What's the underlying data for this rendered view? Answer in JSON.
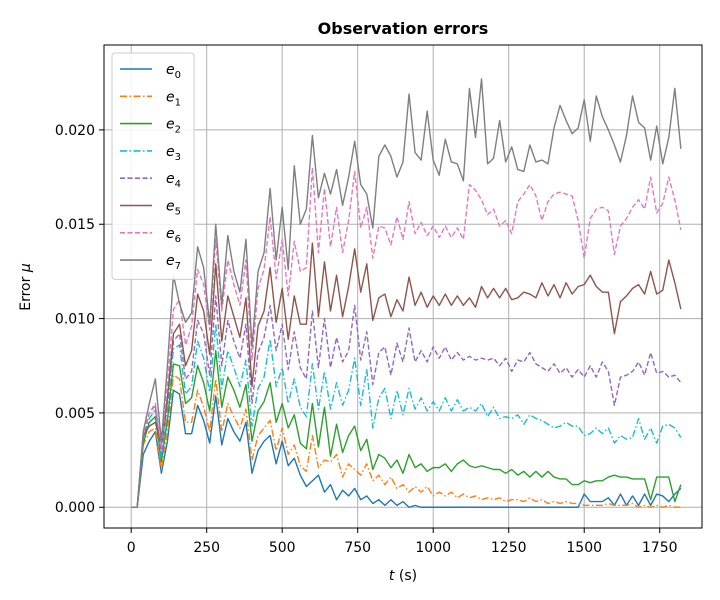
{
  "chart_data": {
    "type": "line",
    "title": "Observation errors",
    "xlabel": "t (s)",
    "ylabel": "Error μ",
    "xlim": [
      -90,
      1890
    ],
    "ylim": [
      -0.0011,
      0.0245
    ],
    "xticks": [
      0,
      250,
      500,
      750,
      1000,
      1250,
      1500,
      1750
    ],
    "yticks": [
      0.0,
      0.005,
      0.01,
      0.015,
      0.02
    ],
    "ytick_labels": [
      "0.000",
      "0.005",
      "0.010",
      "0.015",
      "0.020"
    ],
    "grid": true,
    "legend_position": "top-left",
    "x_step": 20,
    "x_start": 0,
    "series": [
      {
        "name": "e0",
        "label_main": "e",
        "label_sub": "0",
        "color": "#1f77b4",
        "style": "solid",
        "values": [
          0,
          0,
          0.0028,
          0.0035,
          0.004,
          0.0018,
          0.0035,
          0.0062,
          0.006,
          0.0039,
          0.0039,
          0.0054,
          0.0046,
          0.0034,
          0.0059,
          0.0033,
          0.0047,
          0.004,
          0.0035,
          0.0045,
          0.0018,
          0.003,
          0.0035,
          0.0038,
          0.0023,
          0.0035,
          0.0022,
          0.0026,
          0.0017,
          0.0011,
          0.0014,
          0.0017,
          0.0008,
          0.0012,
          0.0004,
          0.0009,
          0.0006,
          0.001,
          0.0004,
          0.0006,
          0.0002,
          0.0004,
          0.0001,
          0.0004,
          0.0001,
          0.0003,
          0,
          0.0001,
          0,
          0,
          0,
          0,
          0,
          0,
          0,
          0,
          0,
          0,
          0,
          0,
          0,
          0,
          0,
          0,
          0,
          0,
          0,
          0,
          0,
          0,
          0,
          0,
          0,
          0,
          0,
          0.0007,
          0.0003,
          0.0003,
          0.0003,
          0.0005,
          0.0001,
          0.0007,
          0.0001,
          0.0006,
          0.0001,
          0.0007,
          0.0001,
          0.0007,
          0.0006,
          0.0003,
          0.0007,
          0.001
        ]
      },
      {
        "name": "e1",
        "label_main": "e",
        "label_sub": "1",
        "color": "#ff7f0e",
        "style": "dashdot",
        "values": [
          0,
          0,
          0.0033,
          0.004,
          0.0042,
          0.002,
          0.004,
          0.007,
          0.0068,
          0.0045,
          0.0045,
          0.0062,
          0.0053,
          0.004,
          0.0068,
          0.004,
          0.0055,
          0.0048,
          0.0042,
          0.0052,
          0.0025,
          0.0038,
          0.0042,
          0.0046,
          0.003,
          0.0042,
          0.0028,
          0.0033,
          0.0022,
          0.0019,
          0.0038,
          0.0021,
          0.0025,
          0.0024,
          0.0028,
          0.0016,
          0.0023,
          0.002,
          0.0017,
          0.0023,
          0.0014,
          0.0017,
          0.0012,
          0.0016,
          0.001,
          0.0012,
          0.0008,
          0.0011,
          0.0008,
          0.0011,
          0.0006,
          0.0008,
          0.0006,
          0.0008,
          0.0005,
          0.0007,
          0.0005,
          0.0006,
          0.0004,
          0.0005,
          0.0004,
          0.0005,
          0.0003,
          0.0004,
          0.0004,
          0.0003,
          0.0005,
          0.0003,
          0.0004,
          0.0002,
          0.0003,
          0.0002,
          0.0003,
          0.0002,
          0.0002,
          0.0001,
          0.0001,
          0.0001,
          0.0001,
          0.0002,
          0.0001,
          0.0001,
          0.0001,
          0.0002,
          0,
          0.0001,
          0,
          0.0001,
          0,
          0.0001,
          0,
          0
        ]
      },
      {
        "name": "e2",
        "label_main": "e",
        "label_sub": "2",
        "color": "#2ca02c",
        "style": "solid",
        "values": [
          0,
          0,
          0.0034,
          0.0045,
          0.0048,
          0.0024,
          0.0046,
          0.0076,
          0.0075,
          0.0055,
          0.0058,
          0.0075,
          0.0066,
          0.0051,
          0.0083,
          0.0053,
          0.0069,
          0.0062,
          0.0053,
          0.0065,
          0.0035,
          0.0051,
          0.0056,
          0.0066,
          0.0045,
          0.0055,
          0.0042,
          0.0049,
          0.0034,
          0.0031,
          0.0055,
          0.0032,
          0.0053,
          0.0027,
          0.0044,
          0.0029,
          0.0038,
          0.0043,
          0.003,
          0.0036,
          0.002,
          0.0028,
          0.0026,
          0.0021,
          0.0025,
          0.0018,
          0.0028,
          0.0021,
          0.0023,
          0.0019,
          0.0021,
          0.0021,
          0.0023,
          0.0019,
          0.0023,
          0.0025,
          0.0022,
          0.0021,
          0.0022,
          0.0021,
          0.002,
          0.002,
          0.0018,
          0.002,
          0.0017,
          0.0019,
          0.0016,
          0.0019,
          0.0016,
          0.0019,
          0.0016,
          0.0015,
          0.0015,
          0.0012,
          0.0012,
          0.0014,
          0.0013,
          0.0014,
          0.0014,
          0.0016,
          0.0017,
          0.0016,
          0.0016,
          0.0015,
          0.0015,
          0.0015,
          0.0004,
          0.0016,
          0.0016,
          0.0016,
          0.0003,
          0.0012
        ]
      },
      {
        "name": "e3",
        "label_main": "e",
        "label_sub": "3",
        "color": "#17becf",
        "style": "dashdot",
        "values": [
          0,
          0,
          0.0036,
          0.0047,
          0.0052,
          0.0026,
          0.0052,
          0.0084,
          0.0086,
          0.006,
          0.0064,
          0.0088,
          0.0079,
          0.0061,
          0.0097,
          0.0063,
          0.0083,
          0.0074,
          0.0064,
          0.0078,
          0.0043,
          0.0063,
          0.0069,
          0.0089,
          0.0064,
          0.0074,
          0.0055,
          0.0068,
          0.0053,
          0.0048,
          0.0076,
          0.0052,
          0.0072,
          0.0052,
          0.0066,
          0.0054,
          0.0062,
          0.0079,
          0.0054,
          0.0073,
          0.0042,
          0.0058,
          0.0063,
          0.0047,
          0.0062,
          0.0049,
          0.0063,
          0.0052,
          0.0058,
          0.0051,
          0.0056,
          0.0051,
          0.0058,
          0.0051,
          0.0057,
          0.0051,
          0.0053,
          0.0051,
          0.0055,
          0.0048,
          0.0053,
          0.0047,
          0.0048,
          0.0047,
          0.0049,
          0.0044,
          0.0049,
          0.0047,
          0.0046,
          0.0044,
          0.0042,
          0.0043,
          0.0045,
          0.0043,
          0.0043,
          0.0038,
          0.0039,
          0.0042,
          0.0039,
          0.0042,
          0.0034,
          0.0038,
          0.0036,
          0.0037,
          0.0047,
          0.0036,
          0.0042,
          0.0034,
          0.0043,
          0.0044,
          0.0042,
          0.0037
        ]
      },
      {
        "name": "e4",
        "label_main": "e",
        "label_sub": "4",
        "color": "#9467bd",
        "style": "dashed",
        "values": [
          0,
          0,
          0.0037,
          0.005,
          0.0054,
          0.0028,
          0.0056,
          0.0088,
          0.0092,
          0.0068,
          0.0072,
          0.0099,
          0.0092,
          0.007,
          0.0112,
          0.0075,
          0.0099,
          0.0088,
          0.0079,
          0.0097,
          0.0055,
          0.0082,
          0.009,
          0.0107,
          0.0083,
          0.0097,
          0.0073,
          0.0093,
          0.0074,
          0.0068,
          0.0104,
          0.0074,
          0.01,
          0.0074,
          0.009,
          0.0077,
          0.0083,
          0.0107,
          0.0078,
          0.0093,
          0.0065,
          0.0082,
          0.0085,
          0.007,
          0.0087,
          0.0077,
          0.0095,
          0.0077,
          0.0083,
          0.0077,
          0.0085,
          0.0079,
          0.0085,
          0.0078,
          0.0082,
          0.0078,
          0.008,
          0.0078,
          0.0079,
          0.0078,
          0.0079,
          0.0075,
          0.0079,
          0.0072,
          0.0078,
          0.0077,
          0.0082,
          0.0076,
          0.0074,
          0.0072,
          0.0076,
          0.0071,
          0.0074,
          0.0069,
          0.0073,
          0.0069,
          0.0075,
          0.0069,
          0.0077,
          0.0072,
          0.0054,
          0.0069,
          0.007,
          0.0072,
          0.0077,
          0.007,
          0.0082,
          0.0071,
          0.0072,
          0.0069,
          0.007,
          0.0066
        ]
      },
      {
        "name": "e5",
        "label_main": "e",
        "label_sub": "5",
        "color": "#8c564b",
        "style": "solid",
        "values": [
          0,
          0,
          0.0038,
          0.0043,
          0.0045,
          0.0033,
          0.0058,
          0.0092,
          0.0097,
          0.0075,
          0.0083,
          0.0113,
          0.0104,
          0.0081,
          0.0129,
          0.0088,
          0.0112,
          0.0101,
          0.009,
          0.0111,
          0.0064,
          0.0096,
          0.0104,
          0.0127,
          0.0098,
          0.0116,
          0.0089,
          0.0112,
          0.0097,
          0.0097,
          0.014,
          0.0101,
          0.013,
          0.0104,
          0.0123,
          0.0101,
          0.0117,
          0.0137,
          0.0114,
          0.0129,
          0.0099,
          0.0111,
          0.0113,
          0.0101,
          0.011,
          0.0104,
          0.0122,
          0.0107,
          0.0114,
          0.0106,
          0.0112,
          0.0107,
          0.0113,
          0.0107,
          0.0112,
          0.0107,
          0.0111,
          0.0106,
          0.0117,
          0.0111,
          0.0116,
          0.0111,
          0.0116,
          0.011,
          0.0111,
          0.0114,
          0.0113,
          0.0111,
          0.0119,
          0.0112,
          0.0118,
          0.0111,
          0.0119,
          0.0113,
          0.0117,
          0.0118,
          0.0123,
          0.0117,
          0.0114,
          0.0114,
          0.0092,
          0.0109,
          0.0112,
          0.0116,
          0.0118,
          0.0113,
          0.0125,
          0.0113,
          0.0115,
          0.0131,
          0.0119,
          0.0105
        ]
      },
      {
        "name": "e6",
        "label_main": "e",
        "label_sub": "6",
        "color": "#e377c2",
        "style": "dashed",
        "values": [
          0,
          0,
          0.0039,
          0.005,
          0.0055,
          0.0032,
          0.0065,
          0.0105,
          0.011,
          0.0086,
          0.0096,
          0.0126,
          0.0118,
          0.0094,
          0.0142,
          0.0104,
          0.0131,
          0.0118,
          0.0107,
          0.0131,
          0.0078,
          0.0116,
          0.0126,
          0.0154,
          0.0121,
          0.0142,
          0.0112,
          0.0141,
          0.0125,
          0.0127,
          0.018,
          0.0135,
          0.0169,
          0.0138,
          0.0159,
          0.0135,
          0.0152,
          0.0178,
          0.0148,
          0.0159,
          0.0132,
          0.0149,
          0.0148,
          0.0139,
          0.0154,
          0.0142,
          0.0162,
          0.0145,
          0.0151,
          0.0144,
          0.0149,
          0.0143,
          0.0149,
          0.0143,
          0.0148,
          0.0142,
          0.0171,
          0.0168,
          0.0163,
          0.0155,
          0.0158,
          0.0149,
          0.0152,
          0.0145,
          0.0162,
          0.0166,
          0.0171,
          0.0165,
          0.0152,
          0.0162,
          0.0166,
          0.0167,
          0.0166,
          0.0165,
          0.0152,
          0.0132,
          0.0153,
          0.0158,
          0.0159,
          0.0157,
          0.0134,
          0.0149,
          0.0153,
          0.0159,
          0.0163,
          0.0158,
          0.0175,
          0.0156,
          0.0161,
          0.0175,
          0.0163,
          0.0147
        ]
      },
      {
        "name": "e7",
        "label_main": "e",
        "label_sub": "7",
        "color": "#7f7f7f",
        "style": "solid",
        "values": [
          0,
          0,
          0.004,
          0.0055,
          0.0068,
          0.0035,
          0.0075,
          0.0123,
          0.0108,
          0.0098,
          0.0103,
          0.0138,
          0.0127,
          0.0097,
          0.015,
          0.0107,
          0.0144,
          0.0125,
          0.0114,
          0.0142,
          0.0085,
          0.0125,
          0.0135,
          0.0169,
          0.0131,
          0.0159,
          0.0126,
          0.0181,
          0.015,
          0.0158,
          0.0197,
          0.0164,
          0.0177,
          0.0166,
          0.0179,
          0.016,
          0.0175,
          0.0194,
          0.0171,
          0.0166,
          0.0148,
          0.0186,
          0.0192,
          0.0186,
          0.0175,
          0.0183,
          0.0219,
          0.0188,
          0.0184,
          0.021,
          0.0184,
          0.0176,
          0.0195,
          0.0183,
          0.0182,
          0.0173,
          0.0222,
          0.0196,
          0.0227,
          0.0182,
          0.0185,
          0.0205,
          0.0183,
          0.0191,
          0.0179,
          0.0178,
          0.0192,
          0.0183,
          0.0184,
          0.0182,
          0.0201,
          0.0213,
          0.0205,
          0.0198,
          0.0201,
          0.0216,
          0.0194,
          0.0218,
          0.0207,
          0.02,
          0.0192,
          0.0183,
          0.0197,
          0.0218,
          0.0204,
          0.0201,
          0.0184,
          0.0202,
          0.0182,
          0.0196,
          0.0222,
          0.019
        ]
      }
    ]
  }
}
